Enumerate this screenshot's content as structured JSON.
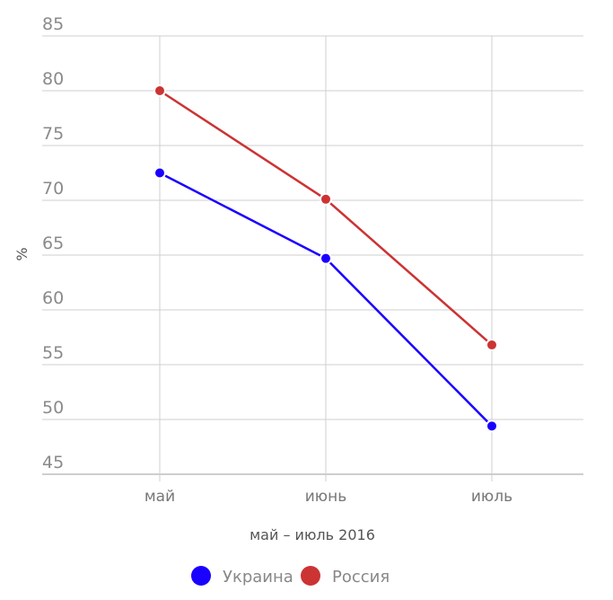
{
  "chart_data": {
    "type": "line",
    "categories": [
      "май",
      "июнь",
      "июль"
    ],
    "xlabel": "май – июль 2016",
    "ylabel": "%",
    "ylim": [
      45,
      85
    ],
    "yticks": [
      45,
      50,
      55,
      60,
      65,
      70,
      75,
      80,
      85
    ],
    "grid": true,
    "legend_position": "bottom",
    "series": [
      {
        "name": "Украина",
        "color": "#1a00ff",
        "values": [
          72.5,
          64.7,
          49.4
        ]
      },
      {
        "name": "Россия",
        "color": "#cc3333",
        "values": [
          80.0,
          70.1,
          56.8
        ]
      }
    ]
  }
}
